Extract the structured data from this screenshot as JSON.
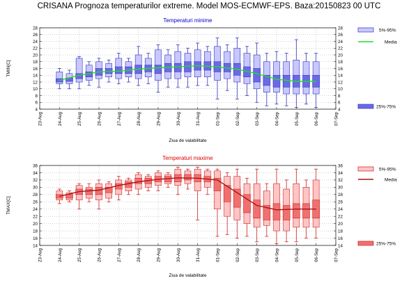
{
  "title": "CRISANA  Prognoza temperaturilor extreme.  Model MOS-ECMWF-EPS. Baza:20150823 00 UTC",
  "chart_data": [
    {
      "type": "box",
      "title": "Temperaturi minime",
      "title_color": "#0000cc",
      "ylabel": "TMIN[C]",
      "xlabel": "Ziua de valabilitate",
      "ylim": [
        4,
        28
      ],
      "yticks": [
        4,
        6,
        8,
        10,
        12,
        14,
        16,
        18,
        20,
        22,
        24,
        26,
        28
      ],
      "x_labels": [
        "23-Aug",
        "24-Aug",
        "25-Aug",
        "26-Aug",
        "27-Aug",
        "28-Aug",
        "29-Aug",
        "30-Aug",
        "31-Aug",
        "01-Sep",
        "02-Sep",
        "03-Sep",
        "04-Sep",
        "05-Sep",
        "06-Sep",
        "07-Sep"
      ],
      "legend": {
        "outer_label": "5%-95%",
        "median_label": "Media",
        "inner_label": "25%-75%"
      },
      "colors": {
        "outer_fill": "#c8c8ff",
        "inner_fill": "#6a6ae6",
        "stroke": "#3333bb",
        "line": "#22dd22"
      },
      "boxes": [
        {
          "x": 1.0,
          "min": 10,
          "p5": 11.5,
          "p25": 12,
          "p75": 13,
          "p95": 15,
          "max": 16
        },
        {
          "x": 1.5,
          "min": 10,
          "p5": 11.5,
          "p25": 12.2,
          "p75": 13.2,
          "p95": 14.5,
          "max": 15.5
        },
        {
          "x": 2.0,
          "min": 10,
          "p5": 12,
          "p25": 13,
          "p75": 14.5,
          "p95": 19,
          "max": 19.5
        },
        {
          "x": 2.5,
          "min": 11,
          "p5": 12.5,
          "p25": 13.5,
          "p75": 15,
          "p95": 17,
          "max": 18
        },
        {
          "x": 3.0,
          "min": 10.5,
          "p5": 13,
          "p25": 14,
          "p75": 16,
          "p95": 18,
          "max": 19
        },
        {
          "x": 3.5,
          "min": 12,
          "p5": 13.5,
          "p25": 14.5,
          "p75": 16,
          "p95": 17.5,
          "max": 18.5
        },
        {
          "x": 4.0,
          "min": 11.5,
          "p5": 13,
          "p25": 14.5,
          "p75": 16.5,
          "p95": 19,
          "max": 20.5
        },
        {
          "x": 4.5,
          "min": 12,
          "p5": 13.5,
          "p25": 14.5,
          "p75": 16.5,
          "p95": 18,
          "max": 19
        },
        {
          "x": 5.0,
          "min": 11,
          "p5": 13,
          "p25": 14.5,
          "p75": 17,
          "p95": 20,
          "max": 22.5
        },
        {
          "x": 5.5,
          "min": 11.5,
          "p5": 13.5,
          "p25": 15,
          "p75": 17,
          "p95": 19,
          "max": 20.5
        },
        {
          "x": 6.0,
          "min": 9,
          "p5": 12.5,
          "p25": 14.5,
          "p75": 17,
          "p95": 21.5,
          "max": 23
        },
        {
          "x": 6.5,
          "min": 10.5,
          "p5": 13,
          "p25": 15,
          "p75": 17.5,
          "p95": 20,
          "max": 21.5
        },
        {
          "x": 7.0,
          "min": 10.5,
          "p5": 13,
          "p25": 15,
          "p75": 17.5,
          "p95": 21,
          "max": 23
        },
        {
          "x": 7.5,
          "min": 10.5,
          "p5": 13.5,
          "p25": 15,
          "p75": 18,
          "p95": 20.5,
          "max": 22
        },
        {
          "x": 8.0,
          "min": 11,
          "p5": 13.5,
          "p25": 15.5,
          "p75": 18,
          "p95": 21.5,
          "max": 23.5
        },
        {
          "x": 8.5,
          "min": 11,
          "p5": 13.5,
          "p25": 15.5,
          "p75": 18,
          "p95": 21,
          "max": 22.5
        },
        {
          "x": 9.0,
          "min": 7,
          "p5": 12.5,
          "p25": 15,
          "p75": 18,
          "p95": 22.5,
          "max": 25
        },
        {
          "x": 9.5,
          "min": 9.5,
          "p5": 13,
          "p25": 15,
          "p75": 17.5,
          "p95": 21,
          "max": 23
        },
        {
          "x": 10.0,
          "min": 7,
          "p5": 12,
          "p25": 14,
          "p75": 17.5,
          "p95": 22,
          "max": 25
        },
        {
          "x": 10.5,
          "min": 8,
          "p5": 11.5,
          "p25": 13.5,
          "p75": 16.5,
          "p95": 20.5,
          "max": 22.5
        },
        {
          "x": 11.0,
          "min": 6,
          "p5": 10,
          "p25": 12,
          "p75": 16,
          "p95": 20,
          "max": 23.5
        },
        {
          "x": 11.5,
          "min": 5,
          "p5": 9,
          "p25": 11,
          "p75": 14,
          "p95": 18,
          "max": 20.5
        },
        {
          "x": 12.0,
          "min": 5.5,
          "p5": 9,
          "p25": 10.5,
          "p75": 14,
          "p95": 18,
          "max": 21
        },
        {
          "x": 12.5,
          "min": 5,
          "p5": 8.5,
          "p25": 10.5,
          "p75": 14,
          "p95": 18,
          "max": 20.5
        },
        {
          "x": 13.0,
          "min": 4.5,
          "p5": 8.5,
          "p25": 10.5,
          "p75": 14,
          "p95": 18.5,
          "max": 24.5
        },
        {
          "x": 13.5,
          "min": 5.5,
          "p5": 8.5,
          "p25": 10.5,
          "p75": 14,
          "p95": 18,
          "max": 20.5
        },
        {
          "x": 14.0,
          "min": 4.5,
          "p5": 8.5,
          "p25": 10.5,
          "p75": 14,
          "p95": 18,
          "max": 20.5
        }
      ],
      "median_line": {
        "x": [
          1,
          2,
          3,
          4,
          5,
          6,
          7,
          8,
          9,
          10,
          11,
          12,
          13,
          14
        ],
        "y": [
          12.5,
          14,
          15,
          15.2,
          15.8,
          16.2,
          16.5,
          16.8,
          16.5,
          15.8,
          14.5,
          12.8,
          12.2,
          12.2
        ]
      }
    },
    {
      "type": "box",
      "title": "Temperaturi maxime",
      "title_color": "#dd0000",
      "ylabel": "TMAX[C]",
      "xlabel": "Ziua de valabilitate",
      "ylim": [
        14,
        36
      ],
      "yticks": [
        14,
        16,
        18,
        20,
        22,
        24,
        26,
        28,
        30,
        32,
        34,
        36
      ],
      "x_labels": [
        "23-Aug",
        "24-Aug",
        "25-Aug",
        "26-Aug",
        "27-Aug",
        "28-Aug",
        "29-Aug",
        "30-Aug",
        "31-Aug",
        "01-Sep",
        "02-Sep",
        "03-Sep",
        "04-Sep",
        "05-Sep",
        "06-Sep",
        "07-Sep"
      ],
      "legend": {
        "outer_label": "5%-95%",
        "median_label": "Media",
        "inner_label": "25%-75%"
      },
      "colors": {
        "outer_fill": "#ffc4c4",
        "inner_fill": "#f07070",
        "stroke": "#cc2222",
        "line": "#aa1111"
      },
      "boxes": [
        {
          "x": 1.0,
          "min": 25.5,
          "p5": 26.5,
          "p25": 27,
          "p75": 28,
          "p95": 29,
          "max": 29.5
        },
        {
          "x": 1.5,
          "min": 26,
          "p5": 26.5,
          "p25": 27,
          "p75": 28,
          "p95": 28.5,
          "max": 29
        },
        {
          "x": 2.0,
          "min": 24,
          "p5": 26.5,
          "p25": 28,
          "p75": 29.5,
          "p95": 30.5,
          "max": 31
        },
        {
          "x": 2.5,
          "min": 26,
          "p5": 27,
          "p25": 28,
          "p75": 29.5,
          "p95": 30,
          "max": 31
        },
        {
          "x": 3.0,
          "min": 24,
          "p5": 26.5,
          "p25": 28,
          "p75": 30,
          "p95": 31,
          "max": 32
        },
        {
          "x": 3.5,
          "min": 26,
          "p5": 27,
          "p25": 28.5,
          "p75": 30,
          "p95": 31,
          "max": 31.5
        },
        {
          "x": 4.0,
          "min": 26.5,
          "p5": 28,
          "p25": 29.5,
          "p75": 31,
          "p95": 32,
          "max": 33
        },
        {
          "x": 4.5,
          "min": 28,
          "p5": 29,
          "p25": 30,
          "p75": 31.5,
          "p95": 32,
          "max": 32.5
        },
        {
          "x": 5.0,
          "min": 28,
          "p5": 29.5,
          "p25": 31,
          "p75": 32.5,
          "p95": 33.5,
          "max": 34
        },
        {
          "x": 5.5,
          "min": 29,
          "p5": 30,
          "p25": 31,
          "p75": 32.5,
          "p95": 33,
          "max": 33.5
        },
        {
          "x": 6.0,
          "min": 29,
          "p5": 30.5,
          "p25": 31.5,
          "p75": 33,
          "p95": 34,
          "max": 34.5
        },
        {
          "x": 6.5,
          "min": 30,
          "p5": 31,
          "p25": 31.5,
          "p75": 33,
          "p95": 33.5,
          "max": 34
        },
        {
          "x": 7.0,
          "min": 28,
          "p5": 30.5,
          "p25": 31.5,
          "p75": 33.5,
          "p95": 35,
          "max": 35.5
        },
        {
          "x": 7.5,
          "min": 29.5,
          "p5": 31,
          "p25": 32,
          "p75": 33.5,
          "p95": 34.5,
          "max": 35
        },
        {
          "x": 8.0,
          "min": 21,
          "p5": 29,
          "p25": 31.5,
          "p75": 33.5,
          "p95": 35,
          "max": 35.5
        },
        {
          "x": 8.5,
          "min": 28,
          "p5": 30,
          "p25": 31.5,
          "p75": 33,
          "p95": 34.5,
          "max": 35
        },
        {
          "x": 9.0,
          "min": 16.5,
          "p5": 24,
          "p25": 29,
          "p75": 32.5,
          "p95": 34.5,
          "max": 35
        },
        {
          "x": 9.5,
          "min": 17,
          "p5": 22,
          "p25": 26,
          "p75": 30.5,
          "p95": 33,
          "max": 34
        },
        {
          "x": 10.0,
          "min": 16,
          "p5": 21,
          "p25": 24.5,
          "p75": 29.5,
          "p95": 33,
          "max": 35
        },
        {
          "x": 10.5,
          "min": 16.5,
          "p5": 20,
          "p25": 23,
          "p75": 28,
          "p95": 31,
          "max": 32.5
        },
        {
          "x": 11.0,
          "min": 15,
          "p5": 19,
          "p25": 21.5,
          "p75": 26.5,
          "p95": 31,
          "max": 35
        },
        {
          "x": 11.5,
          "min": 16.5,
          "p5": 19.5,
          "p25": 21,
          "p75": 25,
          "p95": 29,
          "max": 31
        },
        {
          "x": 12.0,
          "min": 14.5,
          "p5": 18,
          "p25": 21,
          "p75": 25.5,
          "p95": 31,
          "max": 35
        },
        {
          "x": 12.5,
          "min": 15,
          "p5": 18,
          "p25": 21,
          "p75": 25,
          "p95": 29.5,
          "max": 32
        },
        {
          "x": 13.0,
          "min": 15,
          "p5": 19,
          "p25": 21.5,
          "p75": 25.5,
          "p95": 31,
          "max": 35
        },
        {
          "x": 13.5,
          "min": 16,
          "p5": 19,
          "p25": 21.5,
          "p75": 25.5,
          "p95": 30,
          "max": 32
        },
        {
          "x": 14.0,
          "min": 16,
          "p5": 19,
          "p25": 21.5,
          "p75": 26.5,
          "p95": 32,
          "max": 35
        }
      ],
      "median_line": {
        "x": [
          1,
          2,
          3,
          4,
          5,
          6,
          7,
          8,
          9,
          10,
          11,
          12,
          13,
          14
        ],
        "y": [
          27.5,
          28.8,
          29.2,
          30.5,
          31.5,
          32.2,
          32.6,
          32.5,
          32,
          28.5,
          25,
          23.8,
          24,
          24
        ]
      }
    }
  ]
}
